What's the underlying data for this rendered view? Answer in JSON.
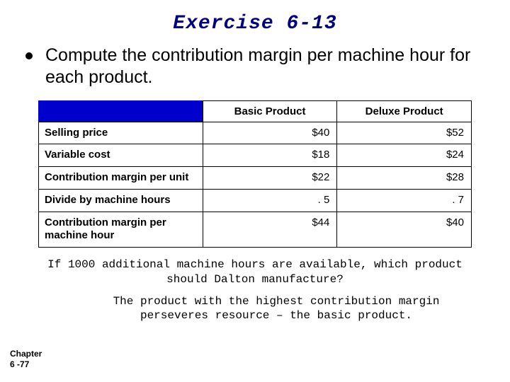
{
  "title": "Exercise 6-13",
  "bullet": "Compute the contribution margin per machine hour for each product.",
  "table": {
    "columns": [
      "Basic Product",
      "Deluxe Product"
    ],
    "rows": [
      {
        "label": "Selling price",
        "basic": "$40",
        "deluxe": "$52"
      },
      {
        "label": "Variable cost",
        "basic": "$18",
        "deluxe": "$24"
      },
      {
        "label": "Contribution margin per unit",
        "basic": "$22",
        "deluxe": "$28"
      },
      {
        "label": "Divide by machine hours",
        "basic": ". 5",
        "deluxe": ". 7"
      },
      {
        "label": "Contribution margin per machine hour",
        "basic": "$44",
        "deluxe": "$40"
      }
    ],
    "header_bg": "#0000cc",
    "border_color": "#000000",
    "font_size": 15
  },
  "question": "If 1000 additional machine hours are available, which product should Dalton manufacture?",
  "answer": "The product with the highest contribution margin perseveres resource – the basic product.",
  "footer_line1": "Chapter",
  "footer_line2": "6 -77",
  "colors": {
    "title": "#000080",
    "background": "#ffffff",
    "text": "#000000"
  }
}
